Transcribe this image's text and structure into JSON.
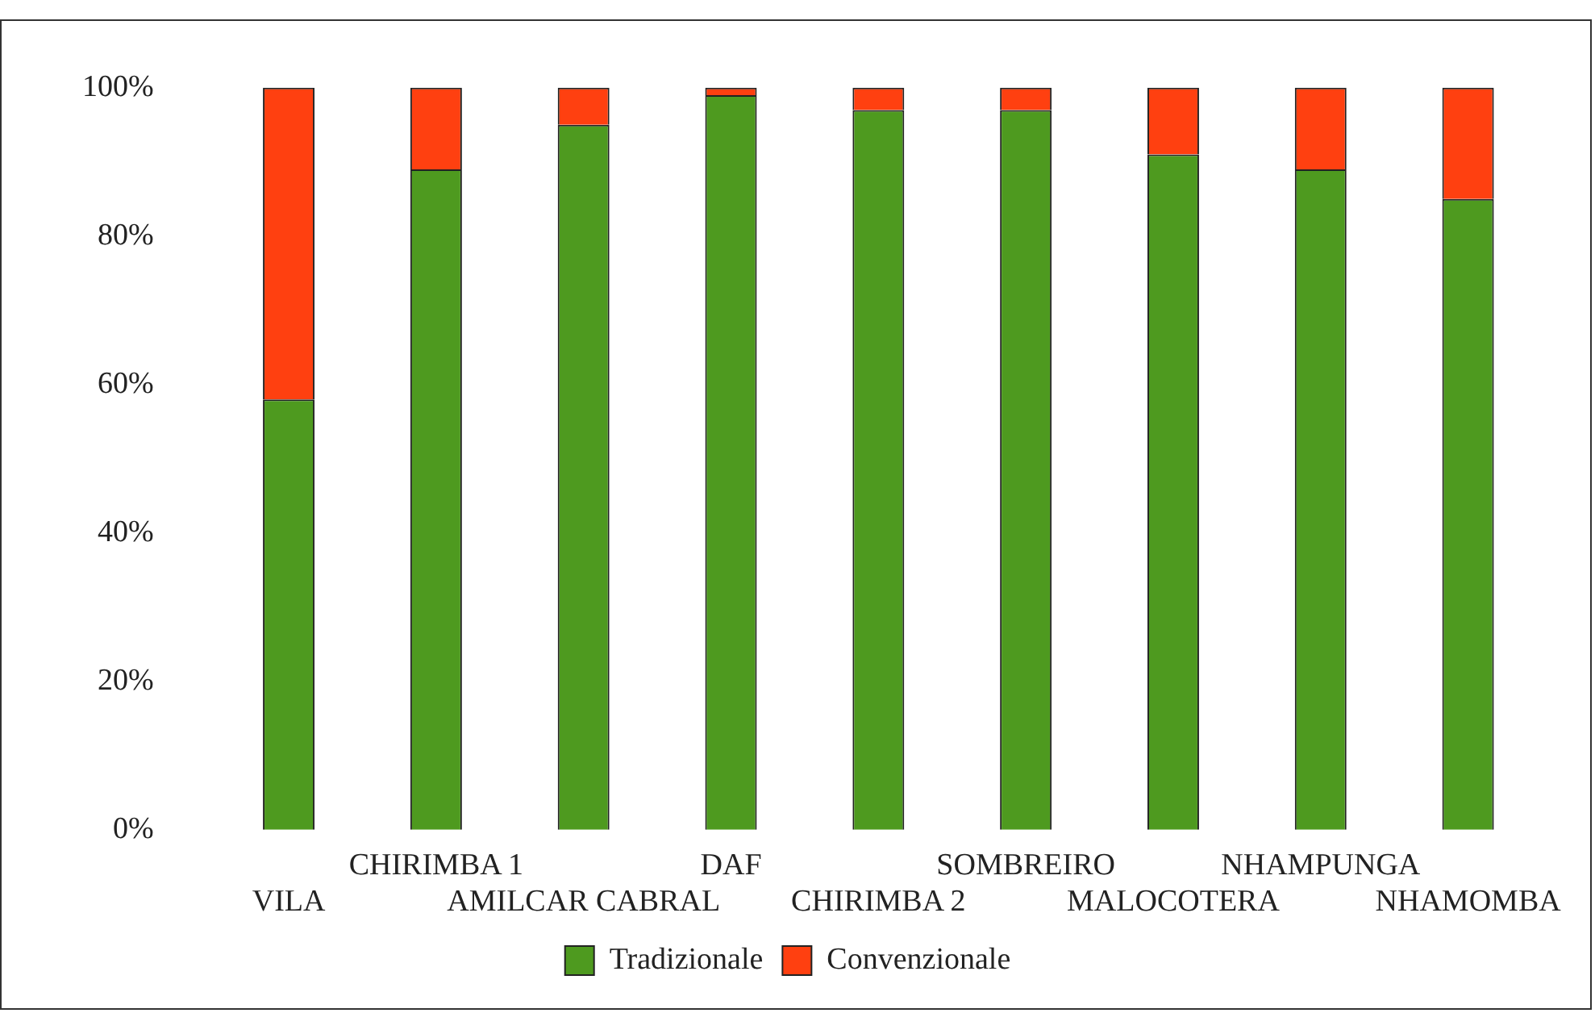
{
  "chart_data": {
    "type": "bar",
    "stacked": true,
    "categories": [
      "VILA",
      "CHIRIMBA 1",
      "AMILCAR CABRAL",
      "DAF",
      "CHIRIMBA 2",
      "SOMBREIRO",
      "MALOCOTERA",
      "NHAMPUNGA",
      "NHAMOMBA"
    ],
    "series": [
      {
        "name": "Tradizionale",
        "color": "#4e9a1f",
        "values": [
          58,
          89,
          95,
          99,
          97,
          97,
          91,
          89,
          85
        ]
      },
      {
        "name": "Convenzionale",
        "color": "#ff4010",
        "values": [
          42,
          11,
          5,
          1,
          3,
          3,
          9,
          11,
          15
        ]
      }
    ],
    "ylim": [
      0,
      100
    ],
    "yticks": [
      {
        "value": 0,
        "label": "0%"
      },
      {
        "value": 20,
        "label": "20%"
      },
      {
        "value": 40,
        "label": "40%"
      },
      {
        "value": 60,
        "label": "60%"
      },
      {
        "value": 80,
        "label": "80%"
      },
      {
        "value": 100,
        "label": "100%"
      }
    ],
    "grid": false,
    "legend": "bottom"
  }
}
